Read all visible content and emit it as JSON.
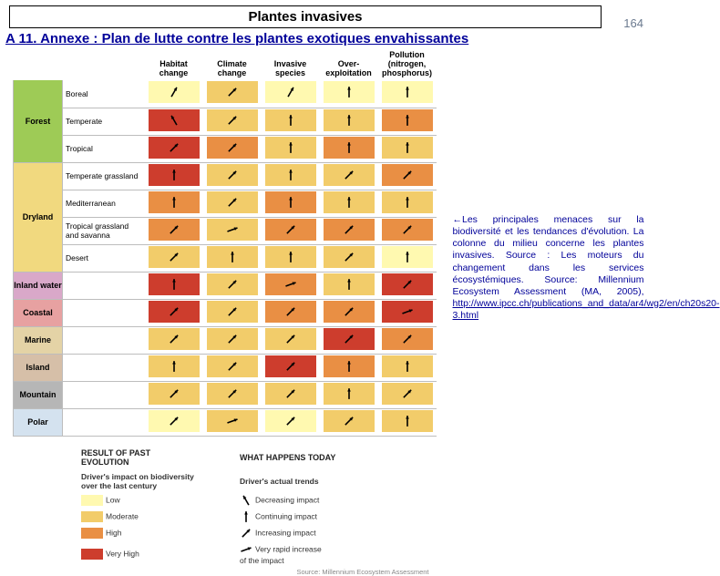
{
  "page_number": "164",
  "title": "Plantes invasives",
  "subtitle": "A 11. Annexe : Plan de lutte contre les plantes exotiques envahissantes",
  "colors": {
    "low": "#fff9b0",
    "moderate": "#f2cc6a",
    "high": "#e98f44",
    "veryhigh": "#cd3d2d",
    "arrow": "#000000",
    "cat_forest": "#9ecb56",
    "cat_dryland": "#f1d97f",
    "cat_inland": "#d9a8c9",
    "cat_coastal": "#e7a1a1",
    "cat_marine": "#e4d3a6",
    "cat_island": "#d6bfa8",
    "cat_mountain": "#b6b6b6",
    "cat_polar": "#d4e2ef",
    "subtitle_color": "#000099"
  },
  "column_headers": [
    "Habitat\nchange",
    "Climate\nchange",
    "Invasive\nspecies",
    "Over-\nexploitation",
    "Pollution\n(nitrogen,\nphosphorus)"
  ],
  "biomes": [
    {
      "group": "Forest",
      "group_color": "cat_forest",
      "rows": [
        {
          "label": "Boreal",
          "cells": [
            [
              "low",
              "u"
            ],
            [
              "moderate",
              "i"
            ],
            [
              "low",
              "u"
            ],
            [
              "low",
              "c"
            ],
            [
              "low",
              "c"
            ]
          ]
        },
        {
          "label": "Temperate",
          "cells": [
            [
              "veryhigh",
              "d"
            ],
            [
              "moderate",
              "i"
            ],
            [
              "moderate",
              "c"
            ],
            [
              "moderate",
              "c"
            ],
            [
              "high",
              "c"
            ]
          ]
        },
        {
          "label": "Tropical",
          "cells": [
            [
              "veryhigh",
              "i"
            ],
            [
              "high",
              "i"
            ],
            [
              "moderate",
              "c"
            ],
            [
              "high",
              "c"
            ],
            [
              "moderate",
              "c"
            ]
          ]
        }
      ]
    },
    {
      "group": "Dryland",
      "group_color": "cat_dryland",
      "rows": [
        {
          "label": "Temperate grassland",
          "cells": [
            [
              "veryhigh",
              "c"
            ],
            [
              "moderate",
              "i"
            ],
            [
              "moderate",
              "c"
            ],
            [
              "moderate",
              "i"
            ],
            [
              "high",
              "i"
            ]
          ]
        },
        {
          "label": "Mediterranean",
          "cells": [
            [
              "high",
              "c"
            ],
            [
              "moderate",
              "i"
            ],
            [
              "high",
              "c"
            ],
            [
              "moderate",
              "c"
            ],
            [
              "moderate",
              "c"
            ]
          ]
        },
        {
          "label": "Tropical grassland\nand savanna",
          "cells": [
            [
              "high",
              "i"
            ],
            [
              "moderate",
              "v"
            ],
            [
              "high",
              "i"
            ],
            [
              "high",
              "i"
            ],
            [
              "high",
              "i"
            ]
          ]
        },
        {
          "label": "Desert",
          "cells": [
            [
              "moderate",
              "i"
            ],
            [
              "moderate",
              "c"
            ],
            [
              "moderate",
              "c"
            ],
            [
              "moderate",
              "i"
            ],
            [
              "low",
              "c"
            ]
          ]
        }
      ]
    },
    {
      "group": "Inland water",
      "group_color": "cat_inland",
      "rows": [
        {
          "label": "",
          "cells": [
            [
              "veryhigh",
              "c"
            ],
            [
              "moderate",
              "i"
            ],
            [
              "high",
              "v"
            ],
            [
              "moderate",
              "c"
            ],
            [
              "veryhigh",
              "i"
            ]
          ]
        }
      ]
    },
    {
      "group": "Coastal",
      "group_color": "cat_coastal",
      "rows": [
        {
          "label": "",
          "cells": [
            [
              "veryhigh",
              "i"
            ],
            [
              "moderate",
              "i"
            ],
            [
              "high",
              "i"
            ],
            [
              "high",
              "i"
            ],
            [
              "veryhigh",
              "v"
            ]
          ]
        }
      ]
    },
    {
      "group": "Marine",
      "group_color": "cat_marine",
      "rows": [
        {
          "label": "",
          "cells": [
            [
              "moderate",
              "i"
            ],
            [
              "moderate",
              "i"
            ],
            [
              "moderate",
              "i"
            ],
            [
              "veryhigh",
              "i"
            ],
            [
              "high",
              "i"
            ]
          ]
        }
      ]
    },
    {
      "group": "Island",
      "group_color": "cat_island",
      "rows": [
        {
          "label": "",
          "cells": [
            [
              "moderate",
              "c"
            ],
            [
              "moderate",
              "i"
            ],
            [
              "veryhigh",
              "i"
            ],
            [
              "high",
              "c"
            ],
            [
              "moderate",
              "c"
            ]
          ]
        }
      ]
    },
    {
      "group": "Mountain",
      "group_color": "cat_mountain",
      "rows": [
        {
          "label": "",
          "cells": [
            [
              "moderate",
              "i"
            ],
            [
              "moderate",
              "i"
            ],
            [
              "moderate",
              "i"
            ],
            [
              "moderate",
              "c"
            ],
            [
              "moderate",
              "i"
            ]
          ]
        }
      ]
    },
    {
      "group": "Polar",
      "group_color": "cat_polar",
      "rows": [
        {
          "label": "",
          "cells": [
            [
              "low",
              "i"
            ],
            [
              "moderate",
              "v"
            ],
            [
              "low",
              "i"
            ],
            [
              "moderate",
              "i"
            ],
            [
              "moderate",
              "c"
            ]
          ]
        }
      ]
    }
  ],
  "arrows": {
    "d": -30,
    "c": 0,
    "u": 30,
    "i": 45,
    "v": 70
  },
  "legend": {
    "col1_head": "RESULT OF PAST EVOLUTION",
    "col2_head": "WHAT HAPPENS TODAY",
    "impact_title": "Driver's impact on biodiversity\nover the last century",
    "trend_title": "Driver's actual trends",
    "levels": [
      {
        "key": "low",
        "label": "Low"
      },
      {
        "key": "moderate",
        "label": "Moderate"
      },
      {
        "key": "high",
        "label": "High"
      },
      {
        "key": "veryhigh",
        "label": "Very High"
      }
    ],
    "trends": [
      {
        "arrow": "d",
        "label": "Decreasing impact"
      },
      {
        "arrow": "c",
        "label": "Continuing impact"
      },
      {
        "arrow": "i",
        "label": "Increasing impact"
      },
      {
        "arrow": "v",
        "label": "Very rapid increase\nof the impact"
      }
    ],
    "source_small": "Source: Millennium Ecosystem Assessment"
  },
  "caption": {
    "lead": "←Les principales menaces sur la biodiversité et les tendances d'évolution.  La colonne du milieu concerne les plantes invasives. Source : Les moteurs du changement dans les services écosystémiques. Source: Millennium Ecosystem Assessment (MA, 2005), ",
    "link": "http://www.ipcc.ch/publications_and_data/ar4/wg2/en/ch20s20-3.html"
  }
}
